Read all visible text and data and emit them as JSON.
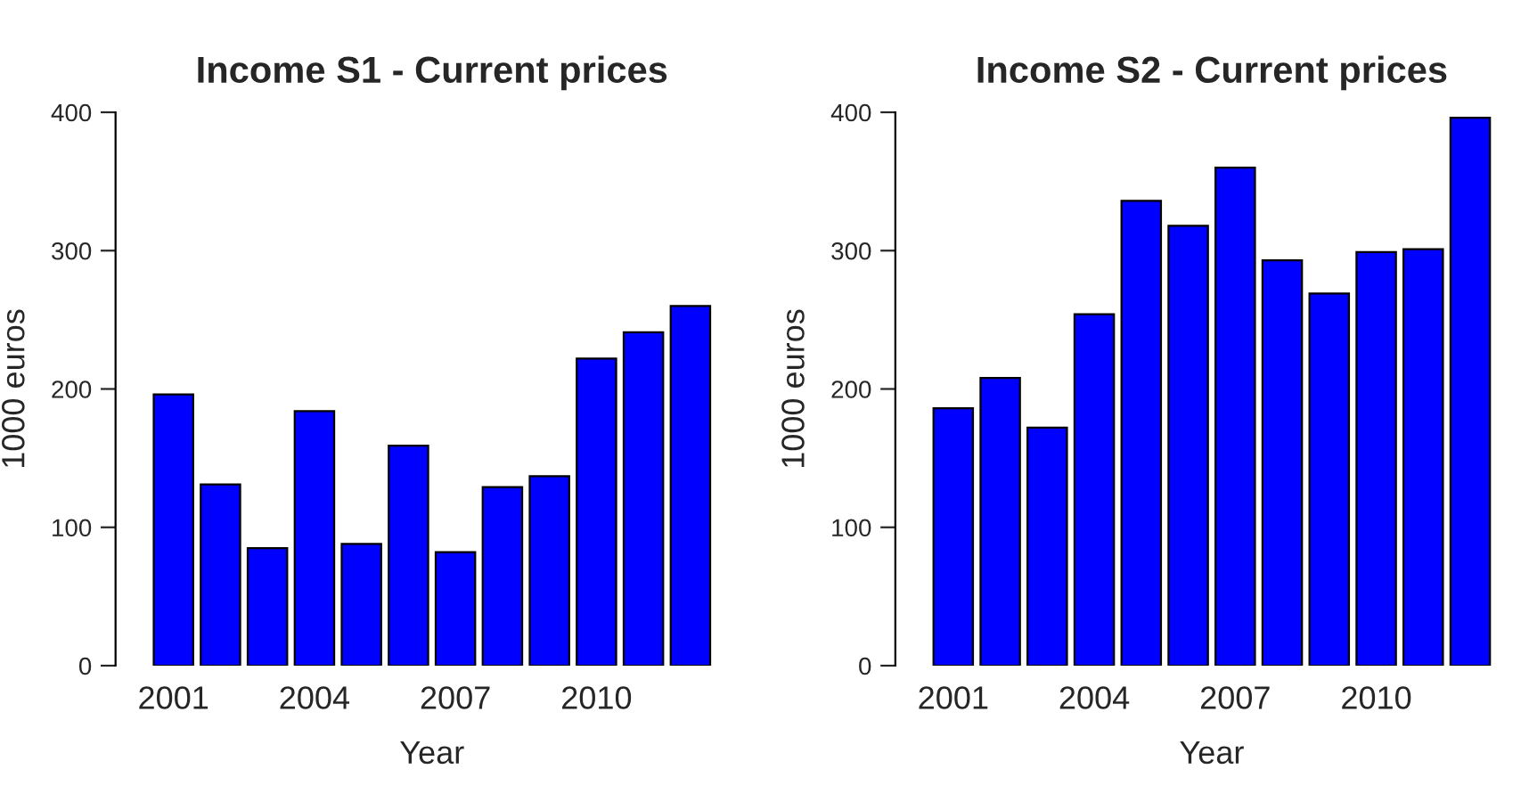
{
  "chart_data": [
    {
      "type": "bar",
      "title": "Income S1 - Current prices",
      "xlabel": "Year",
      "ylabel": "1000 euros",
      "categories": [
        "2001",
        null,
        null,
        "2004",
        null,
        null,
        "2007",
        null,
        null,
        "2010",
        null,
        null
      ],
      "values": [
        196,
        131,
        85,
        184,
        88,
        159,
        82,
        129,
        137,
        222,
        241,
        260
      ],
      "color": "#0000ff",
      "ylim": [
        0,
        400
      ],
      "yticks": [
        0,
        100,
        200,
        300,
        400
      ],
      "grid": false
    },
    {
      "type": "bar",
      "title": "Income S2 - Current prices",
      "xlabel": "Year",
      "ylabel": "1000 euros",
      "categories": [
        "2001",
        null,
        null,
        "2004",
        null,
        null,
        "2007",
        null,
        null,
        "2010",
        null,
        null
      ],
      "values": [
        186,
        208,
        172,
        254,
        336,
        318,
        360,
        293,
        269,
        299,
        301,
        396
      ],
      "color": "#0000ff",
      "ylim": [
        0,
        400
      ],
      "yticks": [
        0,
        100,
        200,
        300,
        400
      ],
      "grid": false
    }
  ]
}
